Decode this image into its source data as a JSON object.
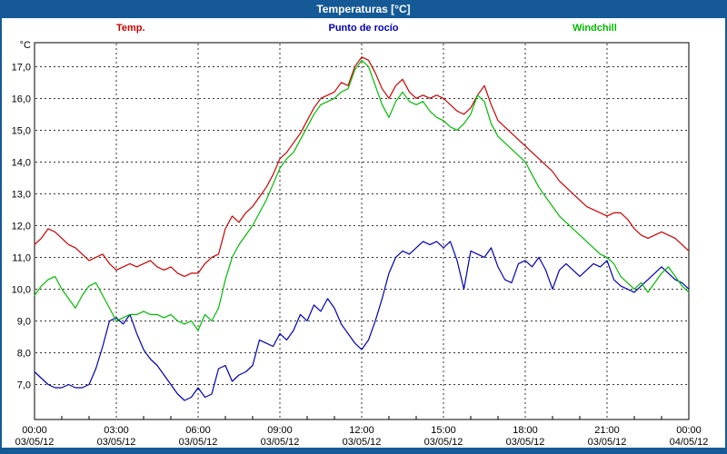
{
  "window": {
    "title": "Temperaturas [°C]"
  },
  "colors": {
    "titlebar": "#155a96",
    "temp": "#cc0000",
    "dewpoint": "#0000b4",
    "windchill": "#00bb00",
    "grid": "#333333",
    "axis": "#000000"
  },
  "chart_data": {
    "type": "line",
    "title": "Temperaturas [°C]",
    "ylabel": "°C",
    "ylim": [
      5.9,
      17.75
    ],
    "grid": true,
    "legend_position": "top",
    "x_step_hours": 0.25,
    "x_ticks": [
      {
        "hour": 0,
        "time": "00:00",
        "date": "03/05/12"
      },
      {
        "hour": 3,
        "time": "03:00",
        "date": "03/05/12"
      },
      {
        "hour": 6,
        "time": "06:00",
        "date": "03/05/12"
      },
      {
        "hour": 9,
        "time": "09:00",
        "date": "03/05/12"
      },
      {
        "hour": 12,
        "time": "12:00",
        "date": "03/05/12"
      },
      {
        "hour": 15,
        "time": "15:00",
        "date": "03/05/12"
      },
      {
        "hour": 18,
        "time": "18:00",
        "date": "03/05/12"
      },
      {
        "hour": 21,
        "time": "21:00",
        "date": "03/05/12"
      },
      {
        "hour": 24,
        "time": "00:00",
        "date": "04/05/12"
      }
    ],
    "y_ticks": [
      {
        "value": 7,
        "label": "7,0"
      },
      {
        "value": 8,
        "label": "8,0"
      },
      {
        "value": 9,
        "label": "9,0"
      },
      {
        "value": 10,
        "label": "10,0"
      },
      {
        "value": 11,
        "label": "11,0"
      },
      {
        "value": 12,
        "label": "12,0"
      },
      {
        "value": 13,
        "label": "13,0"
      },
      {
        "value": 14,
        "label": "14,0"
      },
      {
        "value": 15,
        "label": "15,0"
      },
      {
        "value": 16,
        "label": "16,0"
      },
      {
        "value": 17,
        "label": "17,0"
      }
    ],
    "series": [
      {
        "name": "Temp.",
        "color": "#cc0000",
        "values": [
          11.4,
          11.6,
          11.9,
          11.8,
          11.6,
          11.4,
          11.3,
          11.1,
          10.9,
          11.0,
          11.1,
          10.8,
          10.6,
          10.7,
          10.8,
          10.7,
          10.8,
          10.9,
          10.7,
          10.6,
          10.7,
          10.5,
          10.4,
          10.5,
          10.5,
          10.8,
          11.0,
          11.1,
          11.9,
          12.3,
          12.1,
          12.4,
          12.6,
          12.9,
          13.2,
          13.6,
          14.1,
          14.3,
          14.6,
          14.9,
          15.3,
          15.7,
          16.0,
          16.1,
          16.2,
          16.5,
          16.4,
          17.0,
          17.3,
          17.2,
          16.8,
          16.3,
          16.0,
          16.4,
          16.6,
          16.2,
          16.0,
          16.1,
          16.0,
          16.1,
          16.0,
          15.8,
          15.6,
          15.5,
          15.7,
          16.1,
          16.4,
          15.8,
          15.3,
          15.1,
          14.9,
          14.7,
          14.5,
          14.3,
          14.1,
          13.9,
          13.7,
          13.4,
          13.2,
          13.0,
          12.8,
          12.6,
          12.5,
          12.4,
          12.3,
          12.4,
          12.4,
          12.2,
          11.9,
          11.7,
          11.6,
          11.7,
          11.8,
          11.7,
          11.6,
          11.4,
          11.2
        ]
      },
      {
        "name": "Punto de rocío",
        "color": "#0000b4",
        "values": [
          7.4,
          7.2,
          7.0,
          6.9,
          6.9,
          7.0,
          6.9,
          6.9,
          7.0,
          7.5,
          8.2,
          9.0,
          9.1,
          8.9,
          9.2,
          8.6,
          8.1,
          7.8,
          7.6,
          7.3,
          7.0,
          6.7,
          6.5,
          6.6,
          6.9,
          6.6,
          6.7,
          7.5,
          7.6,
          7.1,
          7.3,
          7.4,
          7.6,
          8.4,
          8.3,
          8.2,
          8.6,
          8.4,
          8.7,
          9.2,
          9.0,
          9.5,
          9.3,
          9.7,
          9.4,
          8.9,
          8.6,
          8.3,
          8.1,
          8.4,
          9.0,
          9.7,
          10.5,
          11.0,
          11.2,
          11.1,
          11.3,
          11.5,
          11.4,
          11.5,
          11.3,
          11.5,
          10.9,
          10.0,
          11.2,
          11.1,
          11.0,
          11.3,
          10.7,
          10.3,
          10.2,
          10.8,
          10.9,
          10.7,
          11.0,
          10.6,
          10.0,
          10.6,
          10.8,
          10.6,
          10.4,
          10.6,
          10.8,
          10.7,
          10.9,
          10.3,
          10.1,
          10.0,
          9.9,
          10.1,
          10.3,
          10.5,
          10.7,
          10.5,
          10.3,
          10.2,
          10.0
        ]
      },
      {
        "name": "Windchill",
        "color": "#00bb00",
        "values": [
          9.8,
          10.1,
          10.3,
          10.4,
          10.0,
          9.7,
          9.4,
          9.8,
          10.1,
          10.2,
          9.8,
          9.4,
          9.0,
          9.1,
          9.2,
          9.2,
          9.3,
          9.2,
          9.2,
          9.1,
          9.2,
          9.0,
          8.9,
          9.0,
          8.7,
          9.2,
          9.0,
          9.4,
          10.3,
          11.0,
          11.4,
          11.7,
          12.0,
          12.4,
          12.8,
          13.3,
          13.8,
          14.1,
          14.3,
          14.7,
          15.1,
          15.5,
          15.8,
          15.9,
          16.0,
          16.2,
          16.3,
          16.9,
          17.2,
          17.0,
          16.4,
          15.8,
          15.4,
          15.9,
          16.2,
          15.9,
          15.8,
          15.9,
          15.6,
          15.4,
          15.3,
          15.1,
          15.0,
          15.2,
          15.5,
          16.1,
          15.9,
          15.2,
          14.8,
          14.6,
          14.4,
          14.2,
          14.0,
          13.6,
          13.2,
          12.9,
          12.6,
          12.3,
          12.1,
          11.9,
          11.7,
          11.5,
          11.3,
          11.1,
          11.0,
          10.8,
          10.4,
          10.2,
          10.0,
          10.2,
          9.9,
          10.2,
          10.5,
          10.7,
          10.4,
          10.1,
          9.9
        ]
      }
    ]
  }
}
